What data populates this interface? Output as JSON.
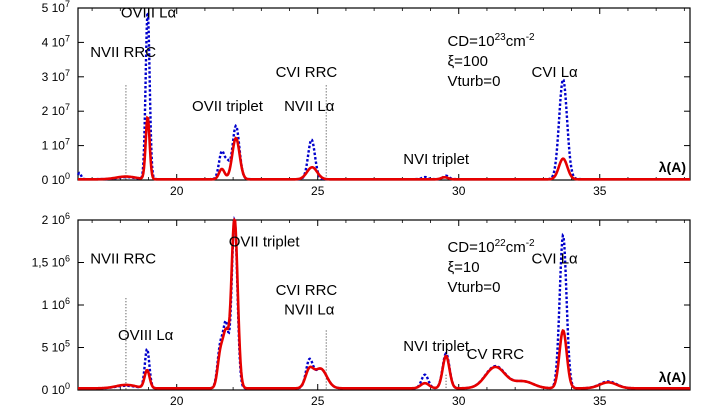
{
  "chart_data": [
    {
      "type": "line",
      "panel": "top",
      "xlim": [
        16.5,
        38.2
      ],
      "ylim": [
        0,
        50000000.0
      ],
      "x_ticks": [
        20,
        25,
        30,
        35
      ],
      "x_tick_labels": [
        "20",
        "25",
        "30",
        "35"
      ],
      "y_ticks": [
        0,
        10000000.0,
        20000000.0,
        30000000.0,
        40000000.0,
        50000000.0
      ],
      "y_tick_labels": [
        {
          "m": "0 10",
          "e": "0"
        },
        {
          "m": "1 10",
          "e": "7"
        },
        {
          "m": "2 10",
          "e": "7"
        },
        {
          "m": "3 10",
          "e": "7"
        },
        {
          "m": "4 10",
          "e": "7"
        },
        {
          "m": "5 10",
          "e": "7"
        }
      ],
      "xlabel": "λ(A)",
      "params": [
        {
          "pre": "CD=10",
          "sup": "23",
          "post": "cm",
          "sup2": "-2"
        },
        {
          "pre": "ξ=100",
          "sup": "",
          "post": "",
          "sup2": ""
        },
        {
          "pre": "Vturb=0",
          "sup": "",
          "post": "",
          "sup2": ""
        }
      ],
      "annotations": [
        {
          "text": "OVIII Lα",
          "x": 19.0,
          "y": 47300000.0
        },
        {
          "text": "NVII RRC",
          "x": 18.1,
          "y": 35800000.0
        },
        {
          "text": "OVII triplet",
          "x": 21.8,
          "y": 20000000.0
        },
        {
          "text": "CVI RRC",
          "x": 24.6,
          "y": 30000000.0
        },
        {
          "text": "NVII Lα",
          "x": 24.7,
          "y": 20000000.0
        },
        {
          "text": "NVI triplet",
          "x": 29.2,
          "y": 4600000.0
        },
        {
          "text": "CVI Lα",
          "x": 33.4,
          "y": 30000000.0
        }
      ],
      "markers": [
        {
          "x": 18.2,
          "y_top": 27500000.0
        },
        {
          "x": 25.3,
          "y_top": 27500000.0
        }
      ],
      "series": [
        {
          "color": "#0000cc",
          "dash": "dotted",
          "baseline": 250000.0,
          "peaks": [
            {
              "x": 16.55,
              "h": 1800000.0,
              "w": 0.06
            },
            {
              "x": 18.97,
              "h": 49000000.0,
              "w": 0.07
            },
            {
              "x": 21.6,
              "h": 8000000.0,
              "w": 0.1
            },
            {
              "x": 21.8,
              "h": 4000000.0,
              "w": 0.08
            },
            {
              "x": 22.1,
              "h": 15500000.0,
              "w": 0.12
            },
            {
              "x": 24.78,
              "h": 11500000.0,
              "w": 0.12
            },
            {
              "x": 28.8,
              "h": 600000.0,
              "w": 0.1
            },
            {
              "x": 29.55,
              "h": 1000000.0,
              "w": 0.1
            },
            {
              "x": 33.7,
              "h": 29000000.0,
              "w": 0.14
            },
            {
              "x": 18.2,
              "h": 600000.0,
              "w": 0.3
            }
          ]
        },
        {
          "color": "#e60000",
          "dash": "solid",
          "baseline": 200000.0,
          "peaks": [
            {
              "x": 18.97,
              "h": 18000000.0,
              "w": 0.07
            },
            {
              "x": 21.6,
              "h": 3000000.0,
              "w": 0.1
            },
            {
              "x": 22.1,
              "h": 12000000.0,
              "w": 0.13
            },
            {
              "x": 24.8,
              "h": 3500000.0,
              "w": 0.18
            },
            {
              "x": 29.5,
              "h": 600000.0,
              "w": 0.12
            },
            {
              "x": 33.7,
              "h": 6000000.0,
              "w": 0.15
            },
            {
              "x": 18.2,
              "h": 800000.0,
              "w": 0.35
            }
          ]
        }
      ]
    },
    {
      "type": "line",
      "panel": "bottom",
      "xlim": [
        16.5,
        38.2
      ],
      "ylim": [
        0,
        2000000.0
      ],
      "x_ticks": [
        20,
        25,
        30,
        35
      ],
      "x_tick_labels": [
        "20",
        "25",
        "30",
        "35"
      ],
      "y_ticks": [
        0,
        500000.0,
        1000000.0,
        1500000.0,
        2000000.0
      ],
      "y_tick_labels": [
        {
          "m": "0 10",
          "e": "0"
        },
        {
          "m": "5 10",
          "e": "5"
        },
        {
          "m": "1 10",
          "e": "6"
        },
        {
          "m": "1,5 10",
          "e": "6"
        },
        {
          "m": "2 10",
          "e": "6"
        }
      ],
      "xlabel": "λ(A)",
      "params": [
        {
          "pre": "CD=10",
          "sup": "22",
          "post": "cm",
          "sup2": "-2"
        },
        {
          "pre": "ξ=10",
          "sup": "",
          "post": "",
          "sup2": ""
        },
        {
          "pre": "Vturb=0",
          "sup": "",
          "post": "",
          "sup2": ""
        }
      ],
      "annotations": [
        {
          "text": "NVII RRC",
          "x": 18.1,
          "y": 1490000.0
        },
        {
          "text": "OVII triplet",
          "x": 23.1,
          "y": 1690000.0
        },
        {
          "text": "CVI RRC",
          "x": 24.6,
          "y": 1120000.0
        },
        {
          "text": "NVII Lα",
          "x": 24.7,
          "y": 890000.0
        },
        {
          "text": "OVIII Lα",
          "x": 18.9,
          "y": 590000.0
        },
        {
          "text": "NVI triplet",
          "x": 29.2,
          "y": 460000.0
        },
        {
          "text": "CV RRC",
          "x": 31.3,
          "y": 365000.0
        },
        {
          "text": "CVI Lα",
          "x": 33.4,
          "y": 1490000.0
        }
      ],
      "markers": [
        {
          "x": 18.2,
          "y_top": 1080000.0
        },
        {
          "x": 25.3,
          "y_top": 700000.0
        },
        {
          "x": 29.55,
          "y_top": 180000.0
        }
      ],
      "series": [
        {
          "color": "#0000cc",
          "dash": "dotted",
          "baseline": 20000.0,
          "peaks": [
            {
              "x": 18.2,
              "h": 30000.0,
              "w": 0.35
            },
            {
              "x": 18.95,
              "h": 460000.0,
              "w": 0.08
            },
            {
              "x": 21.55,
              "h": 500000.0,
              "w": 0.1
            },
            {
              "x": 21.75,
              "h": 700000.0,
              "w": 0.09
            },
            {
              "x": 22.05,
              "h": 2000000.0,
              "w": 0.1
            },
            {
              "x": 24.7,
              "h": 300000.0,
              "w": 0.12
            },
            {
              "x": 25.1,
              "h": 230000.0,
              "w": 0.22
            },
            {
              "x": 28.8,
              "h": 160000.0,
              "w": 0.12
            },
            {
              "x": 29.55,
              "h": 410000.0,
              "w": 0.12
            },
            {
              "x": 31.3,
              "h": 260000.0,
              "w": 0.35
            },
            {
              "x": 32.3,
              "h": 80000.0,
              "w": 0.35
            },
            {
              "x": 33.7,
              "h": 1800000.0,
              "w": 0.12
            },
            {
              "x": 35.3,
              "h": 80000.0,
              "w": 0.3
            }
          ]
        },
        {
          "color": "#e60000",
          "dash": "solid",
          "baseline": 20000.0,
          "peaks": [
            {
              "x": 18.2,
              "h": 40000.0,
              "w": 0.35
            },
            {
              "x": 18.95,
              "h": 210000.0,
              "w": 0.09
            },
            {
              "x": 21.55,
              "h": 400000.0,
              "w": 0.1
            },
            {
              "x": 21.75,
              "h": 600000.0,
              "w": 0.1
            },
            {
              "x": 22.05,
              "h": 2000000.0,
              "w": 0.11
            },
            {
              "x": 24.7,
              "h": 200000.0,
              "w": 0.14
            },
            {
              "x": 25.1,
              "h": 230000.0,
              "w": 0.22
            },
            {
              "x": 28.8,
              "h": 60000.0,
              "w": 0.15
            },
            {
              "x": 29.55,
              "h": 380000.0,
              "w": 0.12
            },
            {
              "x": 31.3,
              "h": 250000.0,
              "w": 0.35
            },
            {
              "x": 32.3,
              "h": 80000.0,
              "w": 0.35
            },
            {
              "x": 33.7,
              "h": 680000.0,
              "w": 0.13
            },
            {
              "x": 35.3,
              "h": 70000.0,
              "w": 0.3
            }
          ]
        }
      ]
    }
  ]
}
